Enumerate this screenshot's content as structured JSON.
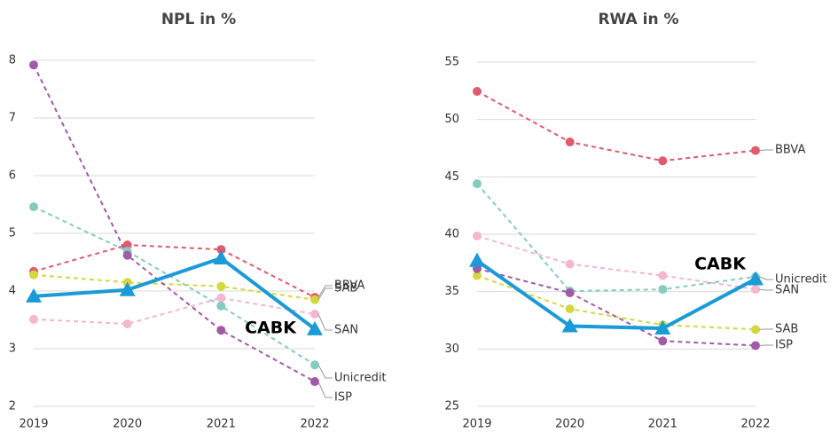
{
  "chart_data": [
    {
      "type": "line",
      "title": "NPL in %",
      "categories": [
        "2019",
        "2020",
        "2021",
        "2022"
      ],
      "ylim": [
        2,
        8
      ],
      "yticks": [
        2,
        3,
        4,
        5,
        6,
        7,
        8
      ],
      "grid": true,
      "series": [
        {
          "name": "BBVA",
          "color": "#e05a6d",
          "values": [
            4.34,
            4.8,
            4.72,
            3.89
          ]
        },
        {
          "name": "SAB",
          "color": "#d4d83c",
          "values": [
            4.28,
            4.15,
            4.08,
            3.85
          ]
        },
        {
          "name": "SAN",
          "color": "#f4b6d0",
          "values": [
            3.51,
            3.43,
            3.88,
            3.6
          ]
        },
        {
          "name": "Unicredit",
          "color": "#86cbbf",
          "values": [
            5.46,
            4.69,
            3.74,
            2.72
          ]
        },
        {
          "name": "ISP",
          "color": "#a05aa8",
          "values": [
            7.92,
            4.62,
            3.32,
            2.43
          ]
        },
        {
          "name": "CABK",
          "color": "#1a9ad6",
          "values": [
            3.91,
            4.02,
            4.57,
            3.34
          ]
        }
      ]
    },
    {
      "type": "line",
      "title": "RWA in %",
      "categories": [
        "2019",
        "2020",
        "2021",
        "2022"
      ],
      "ylim": [
        25,
        55
      ],
      "yticks": [
        25,
        30,
        35,
        40,
        45,
        50,
        55
      ],
      "grid": true,
      "series": [
        {
          "name": "BBVA",
          "color": "#e05a6d",
          "values": [
            52.45,
            48.04,
            46.4,
            47.3
          ]
        },
        {
          "name": "Unicredit",
          "color": "#86cbbf",
          "values": [
            44.4,
            35.05,
            35.2,
            36.3
          ]
        },
        {
          "name": "SAN",
          "color": "#f4b6d0",
          "values": [
            39.85,
            37.4,
            36.4,
            35.2
          ]
        },
        {
          "name": "SAB",
          "color": "#d4d83c",
          "values": [
            36.4,
            33.5,
            32.1,
            31.7
          ]
        },
        {
          "name": "ISP",
          "color": "#a05aa8",
          "values": [
            37.0,
            34.9,
            30.7,
            30.3
          ]
        },
        {
          "name": "CABK",
          "color": "#1a9ad6",
          "values": [
            37.7,
            32.0,
            31.8,
            36.1
          ]
        }
      ]
    }
  ]
}
